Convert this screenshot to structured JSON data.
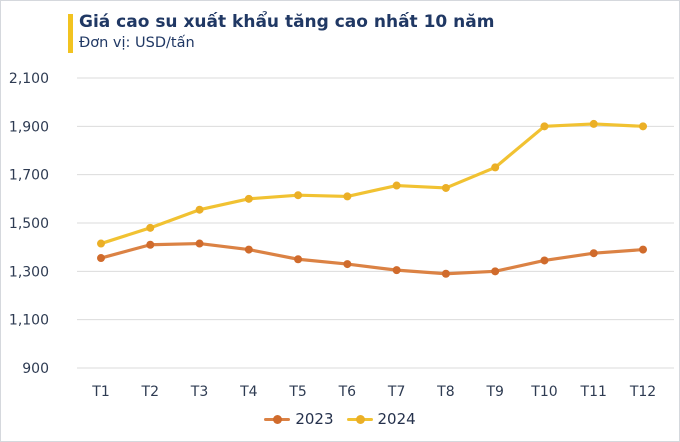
{
  "header": {
    "title": "Giá cao su xuất khẩu tăng cao nhất 10 năm",
    "subtitle": "Đơn vị: USD/tấn"
  },
  "chart_data": {
    "type": "line",
    "title": "Giá cao su xuất khẩu tăng cao nhất 10 năm",
    "subtitle": "Đơn vị: USD/tấn",
    "unit": "USD/tấn",
    "categories": [
      "T1",
      "T2",
      "T3",
      "T4",
      "T5",
      "T6",
      "T7",
      "T8",
      "T9",
      "T10",
      "T11",
      "T12"
    ],
    "series": [
      {
        "name": "2023",
        "color": "#DB8244",
        "marker_color": "#D06B2C",
        "values": [
          1355,
          1410,
          1415,
          1390,
          1350,
          1330,
          1305,
          1290,
          1300,
          1345,
          1375,
          1390
        ]
      },
      {
        "name": "2024",
        "color": "#F1C232",
        "marker_color": "#EBAF26",
        "values": [
          1415,
          1480,
          1555,
          1600,
          1615,
          1610,
          1655,
          1645,
          1730,
          1900,
          1910,
          1900
        ]
      }
    ],
    "ylim": [
      900,
      2100
    ],
    "yticks": [
      900,
      1100,
      1300,
      1500,
      1700,
      1900,
      2100
    ],
    "ytick_labels": [
      "900",
      "1,100",
      "1,300",
      "1,500",
      "1,700",
      "1,900",
      "2,100"
    ],
    "xlabel": "",
    "ylabel": "",
    "grid": "horizontal",
    "legend_position": "bottom"
  },
  "colors": {
    "accent_bar": "#F2C320",
    "title": "#203864",
    "subtitle": "#203864",
    "axis_label": "#2E3B52",
    "legend_label": "#25314C",
    "gridline": "#DBDBDB",
    "background": "#FFFFFF",
    "border": "#D5D8DD"
  }
}
